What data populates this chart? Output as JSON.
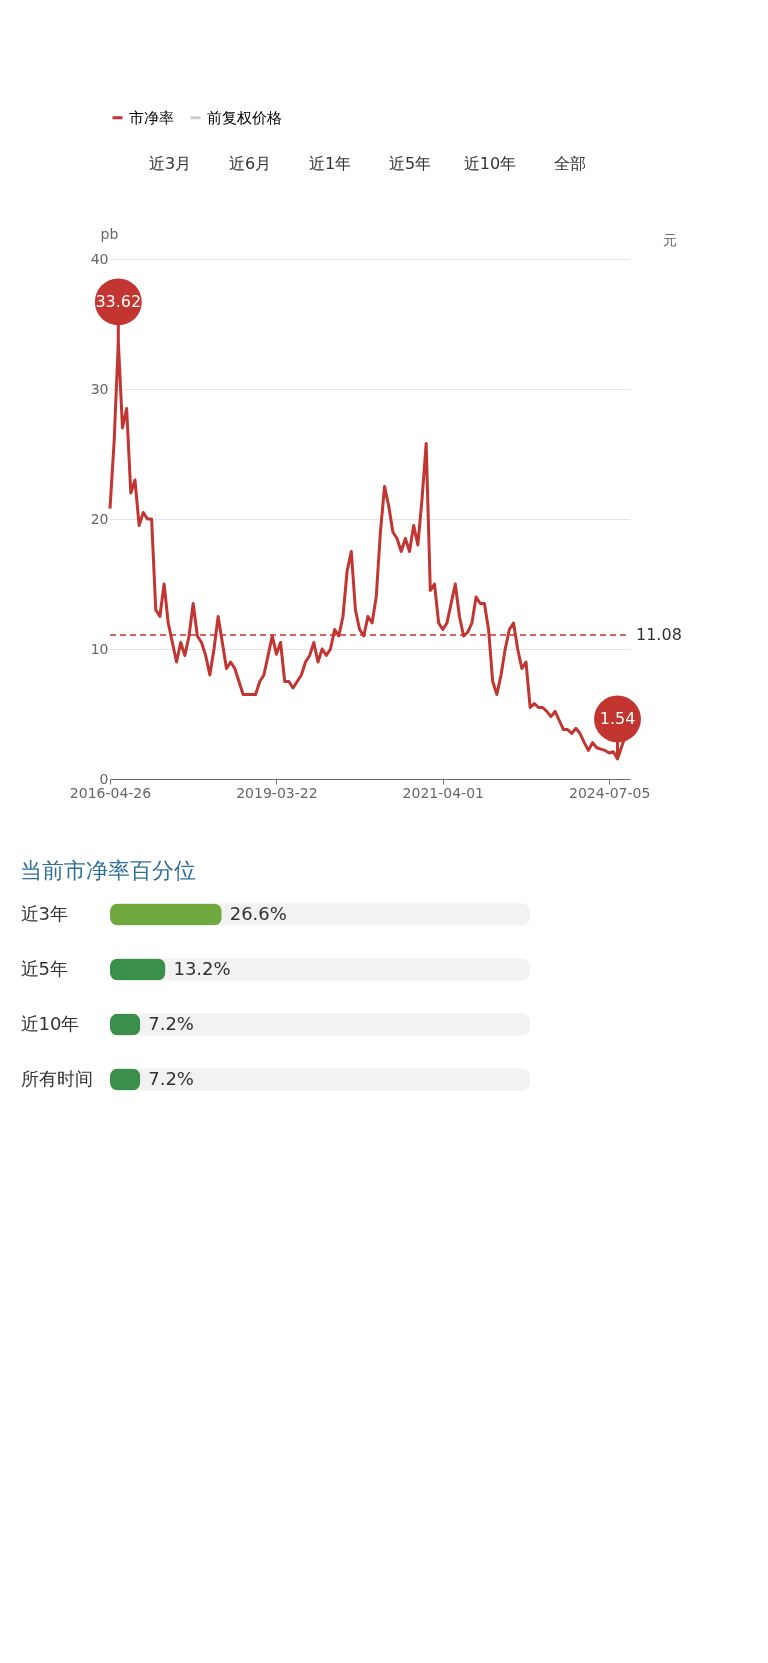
{
  "chart_data": [
    {
      "type": "line",
      "ylabel": "pb",
      "y2label": "元",
      "categories": [
        "2016-04-26",
        null,
        null,
        null,
        null,
        null,
        null,
        null,
        null,
        null,
        null,
        null,
        null,
        null,
        null,
        null,
        null,
        null,
        null,
        null,
        null,
        null,
        null,
        null,
        null,
        null,
        null,
        null,
        null,
        null,
        null,
        null,
        null,
        null,
        null,
        null,
        null,
        null,
        null,
        null,
        "2019-03-22",
        null,
        null,
        null,
        null,
        null,
        null,
        null,
        null,
        null,
        null,
        null,
        null,
        null,
        null,
        null,
        null,
        null,
        null,
        null,
        null,
        null,
        null,
        null,
        null,
        null,
        null,
        null,
        null,
        null,
        null,
        null,
        null,
        null,
        null,
        null,
        null,
        null,
        null,
        null,
        "2021-04-01",
        null,
        null,
        null,
        null,
        null,
        null,
        null,
        null,
        null,
        null,
        null,
        null,
        null,
        null,
        null,
        null,
        null,
        null,
        null,
        null,
        null,
        null,
        null,
        null,
        null,
        null,
        null,
        null,
        null,
        null,
        null,
        null,
        null,
        null,
        null,
        null,
        null,
        null,
        null,
        "2024-07-05",
        null,
        null,
        null,
        null,
        null
      ],
      "series": [
        {
          "name": "市净率",
          "color": "#c23531",
          "values": [
            20.8,
            26,
            33.62,
            27,
            28.5,
            22,
            23,
            19.5,
            20.5,
            20,
            20,
            13,
            12.5,
            15,
            12,
            10.5,
            9,
            10.5,
            9.5,
            11,
            13.5,
            11,
            10.5,
            9.5,
            8,
            10,
            12.5,
            10.5,
            8.5,
            9,
            8.5,
            7.5,
            6.5,
            6.5,
            6.5,
            6.5,
            7.5,
            8,
            9.5,
            11,
            9.6,
            10.5,
            7.5,
            7.5,
            7,
            7.5,
            8,
            9,
            9.5,
            10.5,
            9,
            10,
            9.5,
            10,
            11.5,
            11,
            12.5,
            16,
            17.5,
            13,
            11.5,
            11,
            12.5,
            12,
            14,
            19,
            22.5,
            21,
            19,
            18.5,
            17.5,
            18.5,
            17.5,
            19.5,
            18,
            21.5,
            25.8,
            14.5,
            15,
            12,
            11.5,
            12,
            13.5,
            15,
            12.5,
            11,
            11.3,
            12,
            14,
            13.5,
            13.5,
            11.5,
            7.5,
            6.5,
            8,
            10,
            11.5,
            12,
            10,
            8.5,
            9,
            5.5,
            5.8,
            5.5,
            5.5,
            5.2,
            4.8,
            5.2,
            4.5,
            3.8,
            3.8,
            3.5,
            3.9,
            3.5,
            2.8,
            2.2,
            2.8,
            2.4,
            2.3,
            2.2,
            2,
            2.1,
            1.54,
            2.5,
            3.4,
            3.2
          ]
        },
        {
          "name": "前复权价格",
          "color": "#cccccc",
          "values": [
            null,
            null,
            null,
            null,
            null,
            null,
            null,
            null,
            null,
            null,
            null,
            null,
            null,
            null,
            null,
            null,
            null,
            null,
            null,
            null,
            null,
            null,
            null,
            null,
            null,
            null,
            null,
            null,
            null,
            null,
            null,
            null,
            null,
            null,
            null,
            null,
            null,
            null,
            null,
            null,
            null,
            null,
            null,
            null,
            null,
            null,
            null,
            null,
            null,
            null,
            null,
            null,
            null,
            null,
            null,
            null,
            null,
            null,
            null,
            null,
            null,
            null,
            null,
            null,
            null,
            null,
            null,
            null,
            null,
            null,
            null,
            null,
            null,
            null,
            null,
            null,
            null,
            null,
            null,
            null,
            null,
            null,
            null,
            null,
            null,
            null,
            null,
            null,
            null,
            null,
            null,
            null,
            null,
            null,
            null,
            null,
            null,
            null,
            null,
            null,
            null,
            null,
            null,
            null,
            null,
            null,
            null,
            null,
            null,
            null,
            null,
            null,
            null,
            null,
            null,
            null,
            null,
            null,
            null,
            null,
            null,
            null,
            null,
            null,
            null,
            null
          ]
        }
      ],
      "ylim": [
        0,
        40
      ],
      "yticks": [
        0,
        10,
        20,
        30,
        40
      ],
      "grid": "y",
      "legend": "top",
      "marker": "none",
      "line_style": "solid",
      "ref_lines": [
        {
          "axis": "y",
          "value": 11.08,
          "label": "11.08",
          "color": "#c23531",
          "line_style": "dashed"
        }
      ],
      "annotations": [
        {
          "text": "33.62",
          "y": 33.62
        },
        {
          "text": "1.54",
          "y": 1.54
        },
        "近3月",
        "近6月",
        "近1年",
        "近5年",
        "近10年",
        "全部"
      ]
    },
    {
      "type": "bar",
      "orientation": "horizontal",
      "title": "当前市净率百分位",
      "categories": [
        "近3年",
        "近5年",
        "近10年",
        "所有时间"
      ],
      "values": [
        26.6,
        13.2,
        7.2,
        7.2
      ],
      "value_labels": [
        "26.6%",
        "13.2%",
        "7.2%",
        "7.2%"
      ],
      "colors": [
        "#6fa83f",
        "#3a8f4a",
        "#3a8f4a",
        "#3a8f4a"
      ],
      "xlim": [
        0,
        100
      ],
      "tick_labels": "y"
    }
  ]
}
